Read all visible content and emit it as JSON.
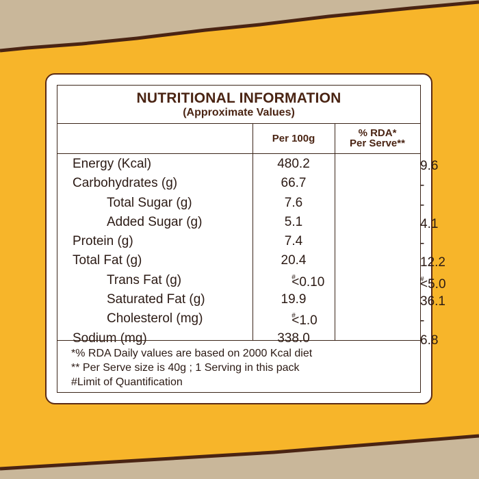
{
  "colors": {
    "background": "#f7b52a",
    "panel": "#ffffff",
    "border": "#5a2a14",
    "text": "#2b1a14",
    "torn_strip": "#c9b79a"
  },
  "table": {
    "title": "NUTRITIONAL INFORMATION",
    "subtitle": "(Approximate Values)",
    "col_per100": "Per 100g",
    "col_rda_line1": "% RDA*",
    "col_rda_line2": "Per Serve**",
    "rows": [
      {
        "name": "Energy (Kcal)",
        "per100": "480.2",
        "rda": "9.6"
      },
      {
        "name": "Carbohydrates (g)",
        "per100": "66.7",
        "rda": "-"
      },
      {
        "name": "Total Sugar (g)",
        "per100": "7.6",
        "rda": "-"
      },
      {
        "name": "Added Sugar (g)",
        "per100": "5.1",
        "rda": "4.1"
      },
      {
        "name": "Protein (g)",
        "per100": "7.4",
        "rda": "-"
      },
      {
        "name": "Total Fat (g)",
        "per100": "20.4",
        "rda": "12.2"
      },
      {
        "name": "Trans Fat (g)",
        "per100": "<0.10",
        "per100_sup": "#",
        "rda": "<5.0",
        "rda_sup": "#"
      },
      {
        "name": "Saturated Fat (g)",
        "per100": "19.9",
        "rda": "36.1"
      },
      {
        "name": "Cholesterol (mg)",
        "per100": "<1.0",
        "per100_sup": "#",
        "rda": "-"
      },
      {
        "name": "Sodium (mg)",
        "per100": "338.0",
        "rda": "6.8"
      }
    ],
    "footnotes": [
      "*% RDA Daily values are based on 2000 Kcal diet",
      "** Per Serve size is 40g ; 1 Serving in this pack",
      "#Limit of Quantification"
    ]
  }
}
